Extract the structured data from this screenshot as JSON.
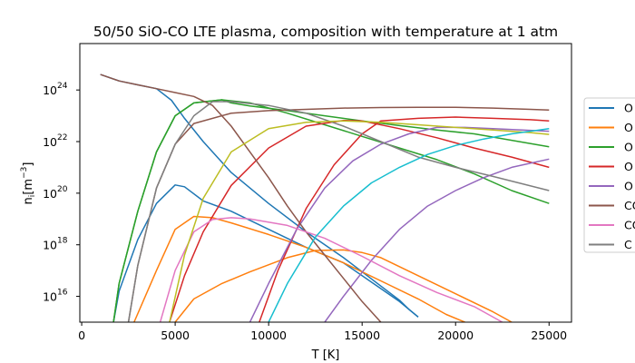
{
  "chart_data": {
    "type": "line",
    "title": "50/50 SiO-CO LTE plasma, composition with temperature at 1 atm",
    "xlabel": "T [K]",
    "ylabel_base": "n",
    "ylabel_sub": "i",
    "ylabel_unit": "[m",
    "ylabel_exp": "−3",
    "ylabel_close": "]",
    "xlim": [
      -100,
      26200
    ],
    "ylim_log10": [
      15,
      25.8
    ],
    "y_scale": "log",
    "x_ticks": [
      0,
      5000,
      10000,
      15000,
      20000,
      25000
    ],
    "x_tick_labels": [
      "0",
      "5000",
      "10000",
      "15000",
      "20000",
      "25000"
    ],
    "y_tick_exponents": [
      16,
      18,
      20,
      22,
      24
    ],
    "y_tick_base": "10",
    "grid": false,
    "legend_position": "right",
    "series": [
      {
        "name": "O",
        "color": "#1f77b4",
        "points": [
          [
            1000,
            24.6
          ],
          [
            2000,
            24.35
          ],
          [
            3000,
            24.2
          ],
          [
            4000,
            24.05
          ],
          [
            4800,
            23.6
          ],
          [
            5500,
            22.9
          ],
          [
            6500,
            22.0
          ],
          [
            8000,
            20.8
          ],
          [
            10000,
            19.6
          ],
          [
            12000,
            18.5
          ],
          [
            14000,
            17.5
          ],
          [
            16000,
            16.4
          ],
          [
            17000,
            15.85
          ],
          [
            17500,
            15.5
          ],
          [
            18000,
            15.2
          ]
        ]
      },
      {
        "name": "O",
        "color": "#1f77b4",
        "points": [
          [
            1700,
            15.0
          ],
          [
            2000,
            16.2
          ],
          [
            3000,
            18.2
          ],
          [
            4000,
            19.6
          ],
          [
            5000,
            20.32
          ],
          [
            5500,
            20.25
          ],
          [
            6500,
            19.7
          ],
          [
            8000,
            19.3
          ],
          [
            10000,
            18.6
          ],
          [
            12000,
            17.9
          ],
          [
            14000,
            17.3
          ],
          [
            16000,
            16.3
          ],
          [
            17000,
            15.8
          ],
          [
            18000,
            15.2
          ]
        ]
      },
      {
        "name": "O",
        "color": "#ff7f0e",
        "points": [
          [
            2800,
            15.0
          ],
          [
            4000,
            17.0
          ],
          [
            5000,
            18.6
          ],
          [
            6000,
            19.1
          ],
          [
            7000,
            19.05
          ],
          [
            8000,
            18.85
          ],
          [
            10000,
            18.4
          ],
          [
            12000,
            17.9
          ],
          [
            14000,
            17.3
          ],
          [
            16000,
            16.6
          ],
          [
            18000,
            15.9
          ],
          [
            19500,
            15.3
          ],
          [
            20500,
            15.0
          ]
        ]
      },
      {
        "name": "O",
        "color": "#ff7f0e",
        "points": [
          [
            5000,
            15.0
          ],
          [
            6000,
            15.9
          ],
          [
            7500,
            16.5
          ],
          [
            9000,
            16.95
          ],
          [
            11000,
            17.5
          ],
          [
            12500,
            17.78
          ],
          [
            14000,
            17.8
          ],
          [
            15000,
            17.7
          ],
          [
            16000,
            17.5
          ],
          [
            18000,
            16.8
          ],
          [
            20000,
            16.1
          ],
          [
            22000,
            15.4
          ],
          [
            23000,
            15.0
          ]
        ]
      },
      {
        "name": "O",
        "color": "#2ca02c",
        "points": [
          [
            1700,
            15.0
          ],
          [
            2000,
            16.5
          ],
          [
            3000,
            19.3
          ],
          [
            4000,
            21.6
          ],
          [
            5000,
            23.0
          ],
          [
            6000,
            23.5
          ],
          [
            7500,
            23.62
          ],
          [
            9000,
            23.5
          ],
          [
            11000,
            23.1
          ],
          [
            13000,
            22.65
          ],
          [
            15000,
            22.2
          ],
          [
            17000,
            21.75
          ],
          [
            19000,
            21.3
          ],
          [
            21000,
            20.75
          ],
          [
            23000,
            20.1
          ],
          [
            25000,
            19.6
          ]
        ]
      },
      {
        "name": "O",
        "color": "#2ca02c",
        "points": [
          [
            1700,
            15.0
          ],
          [
            2000,
            16.5
          ],
          [
            3000,
            19.3
          ],
          [
            4000,
            21.6
          ],
          [
            5000,
            23.0
          ],
          [
            6000,
            23.5
          ],
          [
            7500,
            23.62
          ],
          [
            8000,
            23.5
          ],
          [
            9000,
            23.38
          ],
          [
            11000,
            23.2
          ],
          [
            13000,
            23.0
          ],
          [
            15000,
            22.8
          ],
          [
            17000,
            22.62
          ],
          [
            19000,
            22.45
          ],
          [
            21000,
            22.3
          ],
          [
            23000,
            22.05
          ],
          [
            25000,
            21.8
          ]
        ]
      },
      {
        "name": "O",
        "color": "#d62728",
        "points": [
          [
            4700,
            15.0
          ],
          [
            5500,
            16.8
          ],
          [
            6500,
            18.5
          ],
          [
            8000,
            20.3
          ],
          [
            10000,
            21.75
          ],
          [
            12000,
            22.6
          ],
          [
            14000,
            22.82
          ],
          [
            15000,
            22.8
          ],
          [
            17000,
            22.5
          ],
          [
            19000,
            22.15
          ],
          [
            21000,
            21.75
          ],
          [
            23000,
            21.4
          ],
          [
            25000,
            21.0
          ]
        ]
      },
      {
        "name": "O",
        "color": "#d62728",
        "points": [
          [
            9500,
            15.0
          ],
          [
            10500,
            17.0
          ],
          [
            12000,
            19.4
          ],
          [
            13500,
            21.1
          ],
          [
            15000,
            22.3
          ],
          [
            16000,
            22.8
          ],
          [
            18000,
            22.9
          ],
          [
            20000,
            22.95
          ],
          [
            22000,
            22.9
          ],
          [
            24000,
            22.85
          ],
          [
            25000,
            22.8
          ]
        ]
      },
      {
        "name": "O",
        "color": "#9467bd",
        "points": [
          [
            9000,
            15.0
          ],
          [
            10000,
            16.5
          ],
          [
            11500,
            18.6
          ],
          [
            13000,
            20.2
          ],
          [
            14500,
            21.25
          ],
          [
            16000,
            21.9
          ],
          [
            17500,
            22.3
          ],
          [
            19000,
            22.55
          ],
          [
            20500,
            22.55
          ],
          [
            22000,
            22.5
          ],
          [
            25000,
            22.4
          ]
        ]
      },
      {
        "name": "O",
        "color": "#9467bd",
        "points": [
          [
            13000,
            15.0
          ],
          [
            14000,
            16.0
          ],
          [
            15500,
            17.4
          ],
          [
            17000,
            18.6
          ],
          [
            18500,
            19.5
          ],
          [
            20000,
            20.1
          ],
          [
            21500,
            20.6
          ],
          [
            23000,
            21.0
          ],
          [
            25000,
            21.32
          ]
        ]
      },
      {
        "name": "CO",
        "color": "#8c564b",
        "points": [
          [
            1000,
            24.6
          ],
          [
            2000,
            24.35
          ],
          [
            3000,
            24.2
          ],
          [
            4000,
            24.05
          ],
          [
            5000,
            23.9
          ],
          [
            6000,
            23.75
          ],
          [
            7000,
            23.4
          ],
          [
            8000,
            22.6
          ],
          [
            9000,
            21.6
          ],
          [
            10000,
            20.6
          ],
          [
            11000,
            19.5
          ],
          [
            12000,
            18.5
          ],
          [
            13000,
            17.6
          ],
          [
            14000,
            16.7
          ],
          [
            15000,
            15.8
          ],
          [
            16000,
            15.0
          ]
        ]
      },
      {
        "name": "CO",
        "color": "#8c564b",
        "points": [
          [
            2500,
            15.0
          ],
          [
            3000,
            17.2
          ],
          [
            4000,
            20.2
          ],
          [
            5000,
            21.9
          ],
          [
            6000,
            22.7
          ],
          [
            8000,
            23.1
          ],
          [
            10000,
            23.2
          ],
          [
            12000,
            23.25
          ],
          [
            14000,
            23.3
          ],
          [
            16000,
            23.32
          ],
          [
            18000,
            23.33
          ],
          [
            20000,
            23.33
          ],
          [
            22000,
            23.3
          ],
          [
            24000,
            23.25
          ],
          [
            25000,
            23.22
          ]
        ]
      },
      {
        "name": "CO",
        "color": "#e377c2",
        "points": [
          [
            4200,
            15.0
          ],
          [
            5000,
            17.0
          ],
          [
            6000,
            18.5
          ],
          [
            7000,
            18.98
          ],
          [
            8000,
            19.05
          ],
          [
            9000,
            19.0
          ],
          [
            11000,
            18.75
          ],
          [
            13000,
            18.25
          ],
          [
            15000,
            17.55
          ],
          [
            17000,
            16.8
          ],
          [
            19000,
            16.15
          ],
          [
            21000,
            15.6
          ],
          [
            22500,
            15.0
          ]
        ]
      },
      {
        "name": "C",
        "color": "#7f7f7f",
        "points": [
          [
            2500,
            15.0
          ],
          [
            3000,
            17.2
          ],
          [
            4000,
            20.2
          ],
          [
            5000,
            21.9
          ],
          [
            6000,
            23.0
          ],
          [
            7000,
            23.55
          ],
          [
            8000,
            23.55
          ],
          [
            10000,
            23.4
          ],
          [
            12000,
            23.1
          ],
          [
            14000,
            22.6
          ],
          [
            16000,
            22.0
          ],
          [
            18000,
            21.4
          ],
          [
            20000,
            21.0
          ],
          [
            22000,
            20.65
          ],
          [
            25000,
            20.1
          ]
        ]
      },
      {
        "name": "C",
        "color": "#bcbd22",
        "points": [
          [
            4700,
            15.0
          ],
          [
            5500,
            17.6
          ],
          [
            6500,
            19.8
          ],
          [
            8000,
            21.6
          ],
          [
            10000,
            22.5
          ],
          [
            12000,
            22.75
          ],
          [
            14000,
            22.8
          ],
          [
            16000,
            22.75
          ],
          [
            18000,
            22.65
          ],
          [
            20000,
            22.55
          ],
          [
            22000,
            22.45
          ],
          [
            24000,
            22.35
          ],
          [
            25000,
            22.28
          ]
        ]
      },
      {
        "name": "C",
        "color": "#17becf",
        "points": [
          [
            10000,
            15.0
          ],
          [
            11000,
            16.5
          ],
          [
            12500,
            18.3
          ],
          [
            14000,
            19.5
          ],
          [
            15500,
            20.4
          ],
          [
            17000,
            21.0
          ],
          [
            18500,
            21.5
          ],
          [
            20000,
            21.85
          ],
          [
            21500,
            22.1
          ],
          [
            23000,
            22.3
          ],
          [
            25000,
            22.5
          ]
        ]
      }
    ],
    "legend_entries": [
      {
        "label": "O",
        "color": "#1f77b4"
      },
      {
        "label": "O",
        "color": "#ff7f0e"
      },
      {
        "label": "O",
        "color": "#2ca02c"
      },
      {
        "label": "O",
        "color": "#d62728"
      },
      {
        "label": "O",
        "color": "#9467bd"
      },
      {
        "label": "CO",
        "color": "#8c564b"
      },
      {
        "label": "CO",
        "color": "#e377c2"
      },
      {
        "label": "C",
        "color": "#7f7f7f"
      }
    ]
  }
}
